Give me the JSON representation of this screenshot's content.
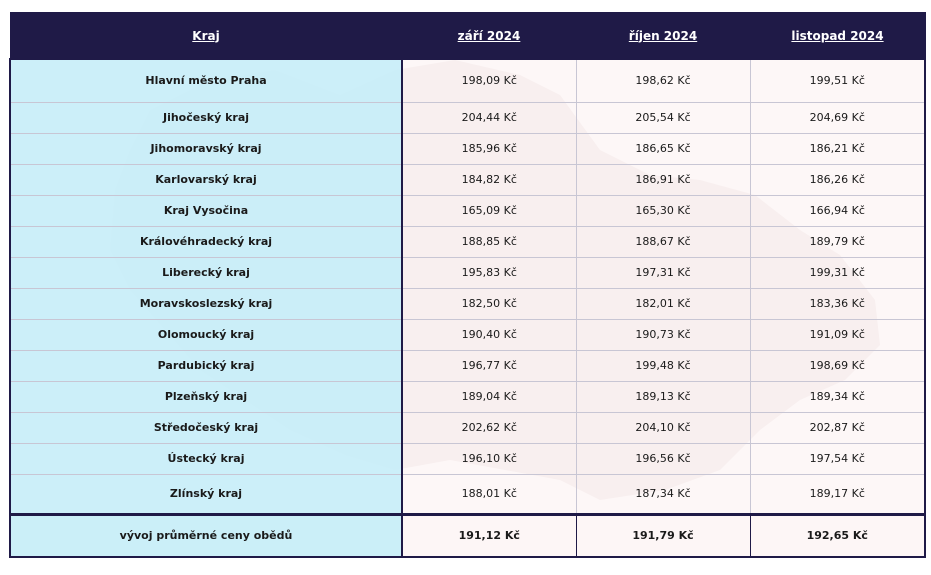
{
  "table": {
    "headers": [
      "Kraj",
      "září 2024",
      "říjen 2024",
      "listopad 2024"
    ],
    "rows": [
      {
        "region": "Hlavní město Praha",
        "values": [
          "198,09 Kč",
          "198,62 Kč",
          "199,51 Kč"
        ]
      },
      {
        "region": "Jihočeský kraj",
        "values": [
          "204,44 Kč",
          "205,54 Kč",
          "204,69 Kč"
        ]
      },
      {
        "region": "Jihomoravský kraj",
        "values": [
          "185,96 Kč",
          "186,65 Kč",
          "186,21 Kč"
        ]
      },
      {
        "region": "Karlovarský kraj",
        "values": [
          "184,82 Kč",
          "186,91 Kč",
          "186,26 Kč"
        ]
      },
      {
        "region": "Kraj Vysočina",
        "values": [
          "165,09 Kč",
          "165,30 Kč",
          "166,94 Kč"
        ]
      },
      {
        "region": "Královéhradecký kraj",
        "values": [
          "188,85 Kč",
          "188,67 Kč",
          "189,79 Kč"
        ]
      },
      {
        "region": "Liberecký kraj",
        "values": [
          "195,83 Kč",
          "197,31 Kč",
          "199,31 Kč"
        ]
      },
      {
        "region": "Moravskoslezský kraj",
        "values": [
          "182,50 Kč",
          "182,01 Kč",
          "183,36 Kč"
        ]
      },
      {
        "region": "Olomoucký kraj",
        "values": [
          "190,40 Kč",
          "190,73 Kč",
          "191,09 Kč"
        ]
      },
      {
        "region": "Pardubický kraj",
        "values": [
          "196,77 Kč",
          "199,48 Kč",
          "198,69 Kč"
        ]
      },
      {
        "region": "Plzeňský kraj",
        "values": [
          "189,04 Kč",
          "189,13 Kč",
          "189,34 Kč"
        ]
      },
      {
        "region": "Středočeský kraj",
        "values": [
          "202,62 Kč",
          "204,10 Kč",
          "202,87 Kč"
        ]
      },
      {
        "region": "Ústecký kraj",
        "values": [
          "196,10 Kč",
          "196,56 Kč",
          "197,54 Kč"
        ]
      },
      {
        "region": "Zlínský kraj",
        "values": [
          "188,01 Kč",
          "187,34 Kč",
          "189,17 Kč"
        ]
      }
    ],
    "footer": {
      "label": "vývoj průměrné ceny obědů",
      "values": [
        "191,12 Kč",
        "191,79 Kč",
        "192,65 Kč"
      ]
    }
  },
  "colors": {
    "header_bg": "#1f1a47",
    "region_bg": "#c8eef8",
    "value_bg": "#fcf0f0",
    "map_watermark": "#e6dcdc"
  }
}
